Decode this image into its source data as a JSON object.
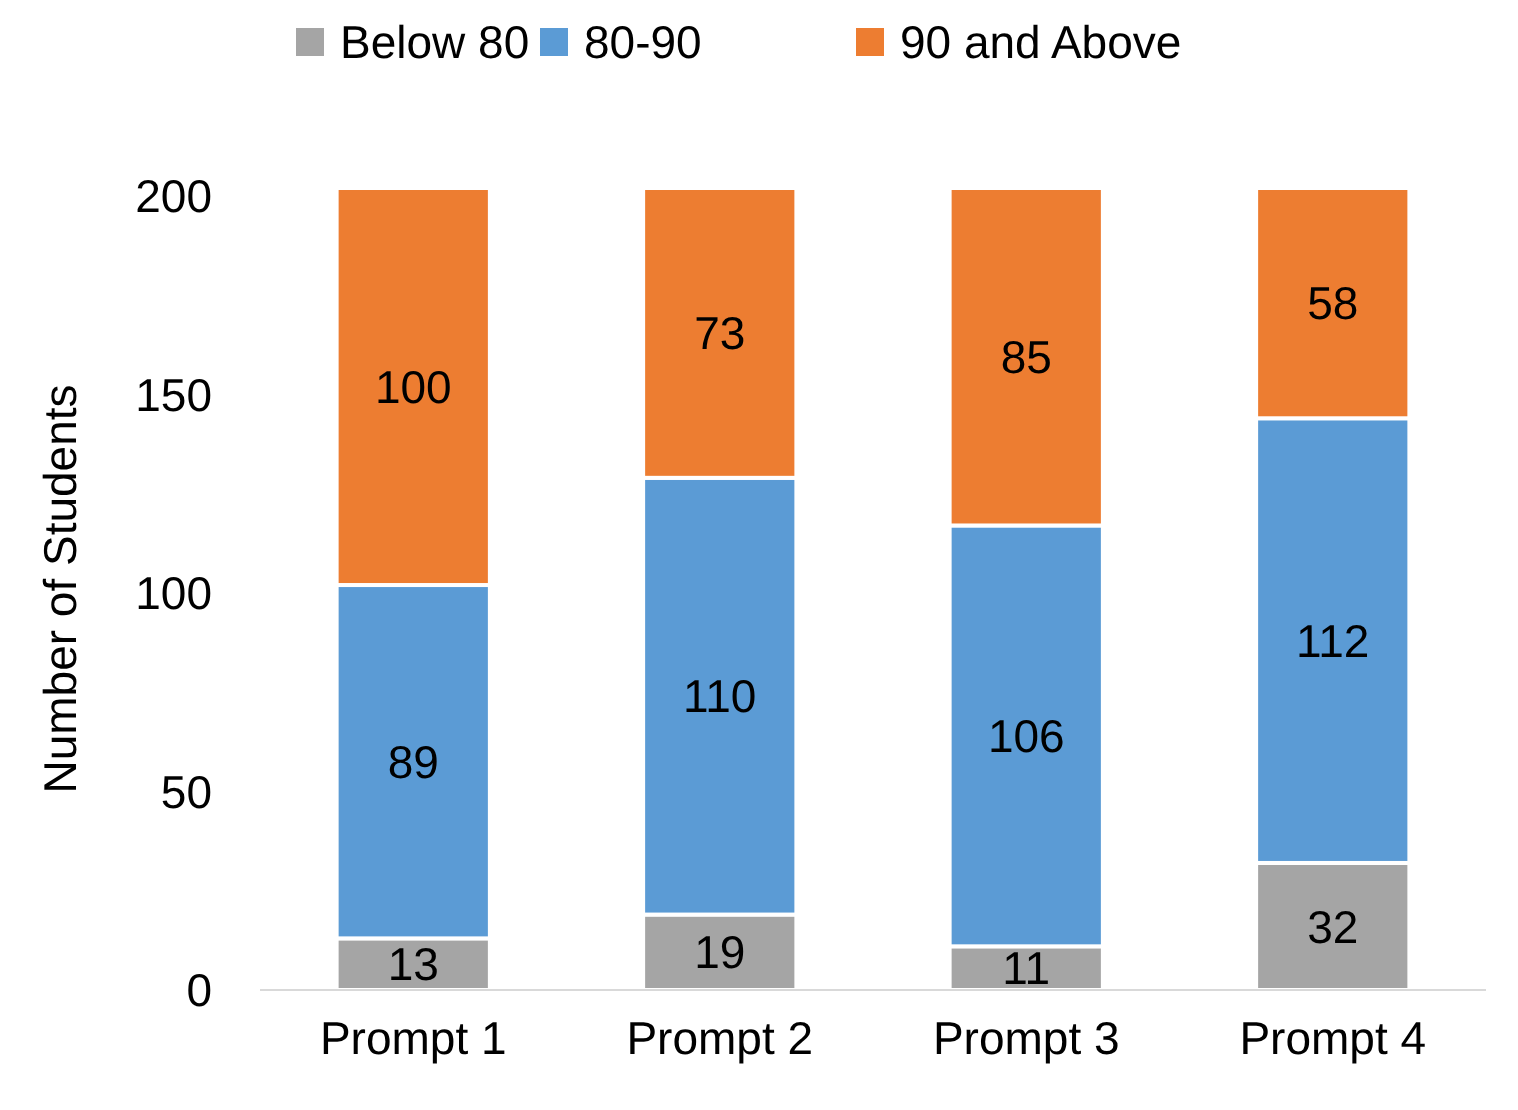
{
  "chart_data": {
    "type": "bar",
    "stacked": true,
    "ylabel": "Number of Students",
    "categories": [
      "Prompt 1",
      "Prompt 2",
      "Prompt 3",
      "Prompt 4"
    ],
    "series": [
      {
        "name": "Below 80",
        "color": "#a5a5a5",
        "values": [
          13,
          19,
          11,
          32
        ]
      },
      {
        "name": "80-90",
        "color": "#5b9bd5",
        "values": [
          89,
          110,
          106,
          112
        ]
      },
      {
        "name": "90 and Above",
        "color": "#ed7d31",
        "values": [
          100,
          73,
          85,
          58
        ]
      }
    ],
    "ylim": [
      0,
      202
    ],
    "yticks": [
      0,
      50,
      100,
      150,
      200
    ],
    "grid": false,
    "legend": "top",
    "data_labels": true
  }
}
